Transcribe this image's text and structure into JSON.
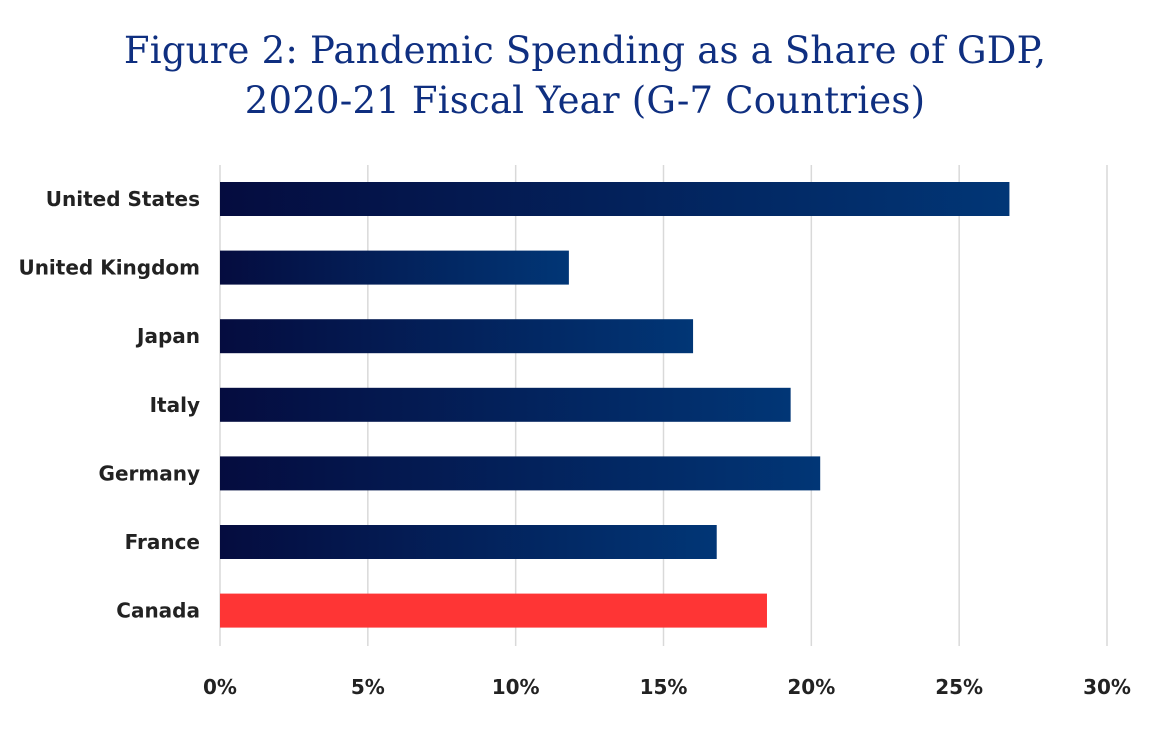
{
  "chart_data": {
    "type": "bar",
    "orientation": "horizontal",
    "title_lines": [
      "Figure 2: Pandemic Spending as a Share of GDP,",
      "2020-21 Fiscal Year (G-7 Countries)"
    ],
    "xlabel": "",
    "ylabel": "",
    "categories": [
      "United States",
      "United Kingdom",
      "Japan",
      "Italy",
      "Germany",
      "France",
      "Canada"
    ],
    "values": [
      26.7,
      11.8,
      16.0,
      19.3,
      20.3,
      16.8,
      18.5
    ],
    "highlight_category": "Canada",
    "xlim": [
      0,
      30
    ],
    "x_ticks": [
      0,
      5,
      10,
      15,
      20,
      25,
      30
    ],
    "x_tick_labels": [
      "0%",
      "5%",
      "10%",
      "15%",
      "20%",
      "25%",
      "30%"
    ],
    "grid": "vertical",
    "colors": {
      "bar_gradient_start": "#050c3f",
      "bar_gradient_end": "#013676",
      "highlight": "#fe3535",
      "grid": "#d9d9d9",
      "title": "#0f2f80"
    }
  }
}
